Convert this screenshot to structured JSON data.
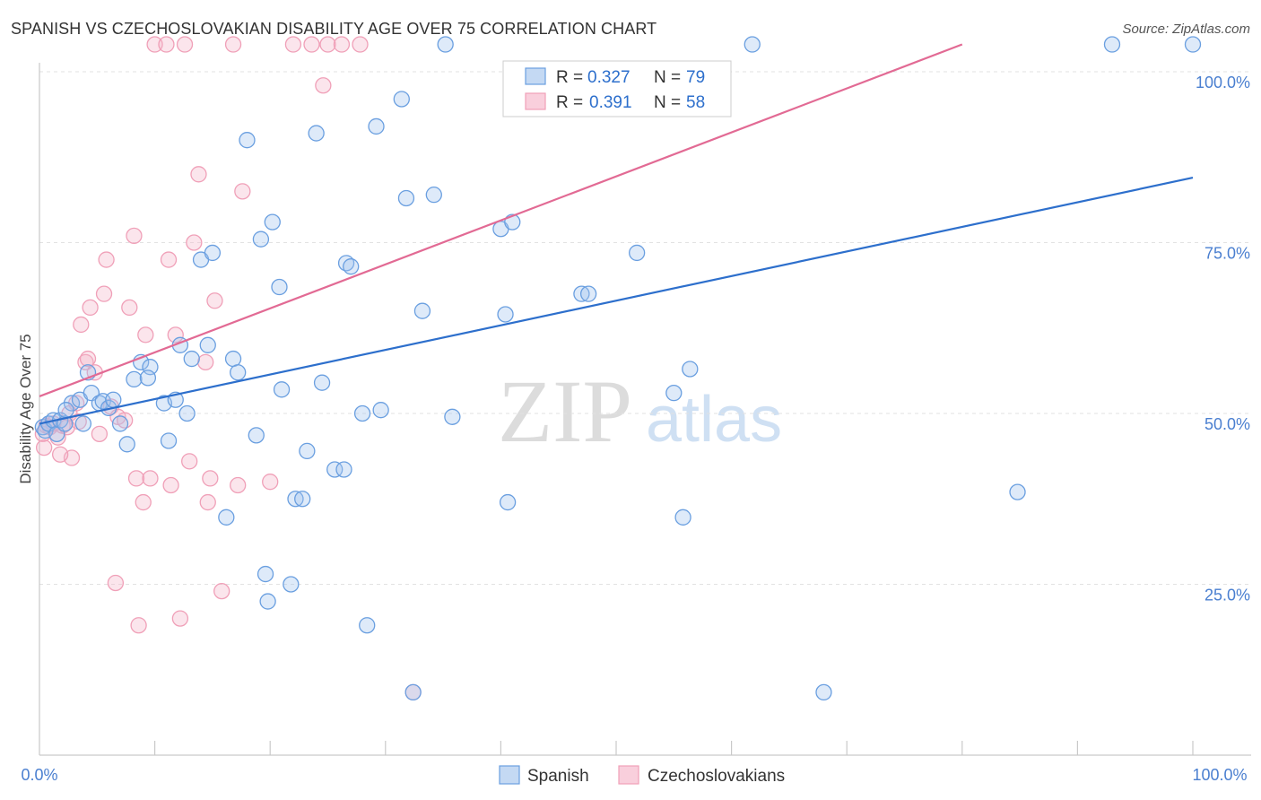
{
  "chart_data": {
    "type": "scatter",
    "title": "SPANISH VS CZECHOSLOVAKIAN DISABILITY AGE OVER 75 CORRELATION CHART",
    "source": "Source: ZipAtlas.com",
    "xlabel": "",
    "ylabel": "Disability Age Over 75",
    "xlim": [
      0,
      100
    ],
    "ylim": [
      0,
      105
    ],
    "x_tick_labels": [
      "0.0%",
      "100.0%"
    ],
    "y_ticks": [
      25,
      50,
      75,
      100
    ],
    "y_tick_labels": [
      "25.0%",
      "50.0%",
      "75.0%",
      "100.0%"
    ],
    "watermark": {
      "zip": "ZIP",
      "atlas": "atlas"
    },
    "legend": {
      "row1": {
        "r_label": "R = ",
        "r_value": "0.327",
        "n_label": "N = ",
        "n_value": "79"
      },
      "row2": {
        "r_label": "R = ",
        "r_value": "0.391",
        "n_label": "N = ",
        "n_value": "58"
      }
    },
    "series": [
      {
        "name": "Spanish",
        "color": "#6a9fe0",
        "line_color": "#2d6fcc",
        "trend": {
          "x0": 0,
          "y0": 48.5,
          "x1": 100,
          "y1": 84.5
        },
        "points": [
          [
            0.3,
            48
          ],
          [
            0.5,
            47.5
          ],
          [
            0.8,
            48.5
          ],
          [
            1.2,
            49
          ],
          [
            1.5,
            47
          ],
          [
            1.8,
            49
          ],
          [
            2.2,
            48.5
          ],
          [
            2.8,
            51.5
          ],
          [
            3.5,
            52
          ],
          [
            3.8,
            48.5
          ],
          [
            4.2,
            56
          ],
          [
            4.5,
            53
          ],
          [
            5.2,
            51.5
          ],
          [
            5.5,
            51.8
          ],
          [
            6.0,
            50.8
          ],
          [
            6.4,
            52
          ],
          [
            7.0,
            48.5
          ],
          [
            7.6,
            45.5
          ],
          [
            8.2,
            55
          ],
          [
            8.8,
            57.5
          ],
          [
            9.6,
            56.8
          ],
          [
            10.8,
            51.5
          ],
          [
            11.2,
            46
          ],
          [
            11.8,
            52
          ],
          [
            12.2,
            60
          ],
          [
            12.8,
            50
          ],
          [
            13.2,
            58
          ],
          [
            14.0,
            72.5
          ],
          [
            14.6,
            60
          ],
          [
            15.0,
            73.5
          ],
          [
            16.2,
            34.8
          ],
          [
            16.8,
            58
          ],
          [
            17.2,
            56
          ],
          [
            18.0,
            90
          ],
          [
            18.8,
            46.8
          ],
          [
            19.2,
            75.5
          ],
          [
            19.6,
            26.5
          ],
          [
            19.8,
            22.5
          ],
          [
            20.2,
            78
          ],
          [
            20.8,
            68.5
          ],
          [
            21.0,
            53.5
          ],
          [
            21.8,
            25
          ],
          [
            22.2,
            37.5
          ],
          [
            22.8,
            37.5
          ],
          [
            23.2,
            44.5
          ],
          [
            24.0,
            91
          ],
          [
            24.5,
            54.5
          ],
          [
            25.6,
            41.8
          ],
          [
            26.4,
            41.8
          ],
          [
            26.6,
            72
          ],
          [
            27.0,
            71.5
          ],
          [
            28.0,
            50
          ],
          [
            28.4,
            19
          ],
          [
            29.2,
            92
          ],
          [
            29.6,
            50.5
          ],
          [
            31.4,
            96
          ],
          [
            31.8,
            81.5
          ],
          [
            33.2,
            65
          ],
          [
            34.2,
            82
          ],
          [
            35.8,
            49.5
          ],
          [
            35.2,
            104
          ],
          [
            40.0,
            77
          ],
          [
            40.4,
            64.5
          ],
          [
            41.0,
            78
          ],
          [
            47.0,
            67.5
          ],
          [
            47.6,
            67.5
          ],
          [
            51.8,
            73.5
          ],
          [
            55.0,
            53
          ],
          [
            55.8,
            34.8
          ],
          [
            56.4,
            56.5
          ],
          [
            61.8,
            104
          ],
          [
            68.0,
            9.2
          ],
          [
            84.8,
            38.5
          ],
          [
            93.0,
            104
          ],
          [
            100.0,
            104
          ],
          [
            32.4,
            9.2
          ],
          [
            2.3,
            50.5
          ],
          [
            40.6,
            37.0
          ],
          [
            9.4,
            55.2
          ]
        ]
      },
      {
        "name": "Czechoslovakians",
        "color": "#f0a0b8",
        "line_color": "#e26a94",
        "trend": {
          "x0": 0,
          "y0": 52.5,
          "x1": 80,
          "y1": 104
        },
        "points": [
          [
            0.3,
            47
          ],
          [
            0.6,
            48.2
          ],
          [
            0.9,
            48
          ],
          [
            1.2,
            48.5
          ],
          [
            1.6,
            46.5
          ],
          [
            2.0,
            48.2
          ],
          [
            2.4,
            48
          ],
          [
            2.8,
            43.5
          ],
          [
            3.2,
            51.5
          ],
          [
            3.6,
            63
          ],
          [
            4.0,
            57.5
          ],
          [
            4.4,
            65.5
          ],
          [
            4.8,
            56
          ],
          [
            5.2,
            47
          ],
          [
            5.6,
            67.5
          ],
          [
            5.8,
            72.5
          ],
          [
            6.2,
            51
          ],
          [
            6.8,
            49.5
          ],
          [
            7.4,
            49
          ],
          [
            7.8,
            65.5
          ],
          [
            8.2,
            76
          ],
          [
            8.4,
            40.5
          ],
          [
            8.6,
            19
          ],
          [
            9.0,
            37
          ],
          [
            9.2,
            61.5
          ],
          [
            9.6,
            40.5
          ],
          [
            10.0,
            104
          ],
          [
            11.0,
            104
          ],
          [
            11.2,
            72.5
          ],
          [
            11.4,
            39.5
          ],
          [
            11.8,
            61.5
          ],
          [
            12.2,
            20
          ],
          [
            12.6,
            104
          ],
          [
            13.0,
            43
          ],
          [
            13.4,
            75
          ],
          [
            13.8,
            85
          ],
          [
            14.4,
            57.5
          ],
          [
            14.6,
            37
          ],
          [
            14.8,
            40.5
          ],
          [
            15.2,
            66.5
          ],
          [
            15.8,
            24
          ],
          [
            16.8,
            104
          ],
          [
            17.2,
            39.5
          ],
          [
            17.6,
            82.5
          ],
          [
            20.0,
            40
          ],
          [
            22.0,
            104
          ],
          [
            23.6,
            104
          ],
          [
            24.6,
            98
          ],
          [
            25.0,
            104
          ],
          [
            26.2,
            104
          ],
          [
            27.8,
            104
          ],
          [
            4.2,
            58
          ],
          [
            1.8,
            44
          ],
          [
            2.6,
            50
          ],
          [
            3.4,
            48.8
          ],
          [
            6.6,
            25.2
          ],
          [
            32.4,
            9.2
          ],
          [
            0.4,
            45
          ]
        ]
      }
    ]
  }
}
